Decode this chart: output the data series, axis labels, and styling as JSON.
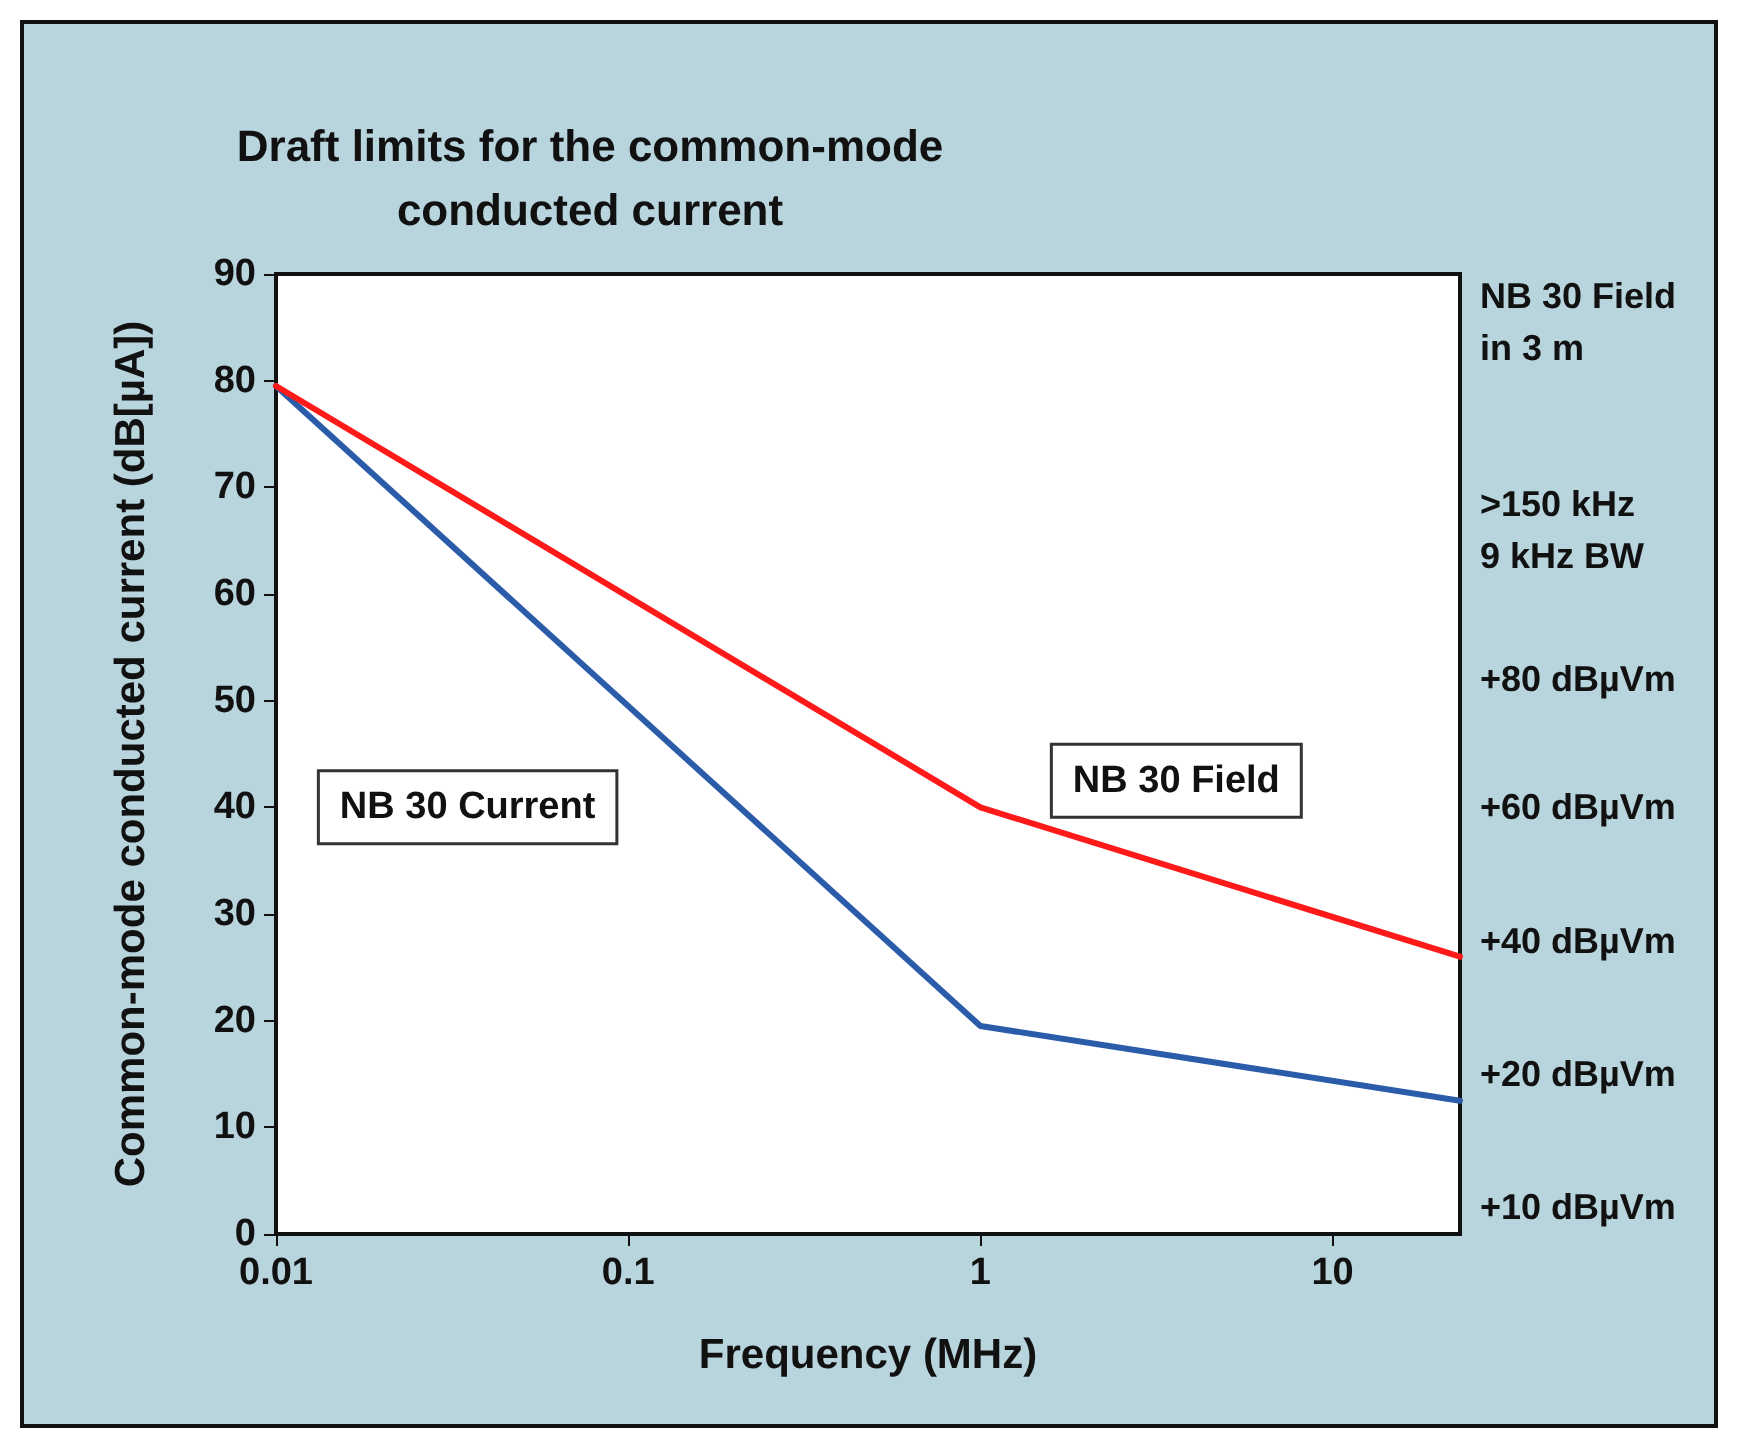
{
  "chart_data": {
    "type": "line",
    "title": "Draft limits for the common-mode\nconducted current",
    "xlabel": "Frequency (MHz)",
    "ylabel": "Common-mode conducted current (dB[µA])",
    "log": "x",
    "xlim": [
      0.01,
      23
    ],
    "xticks": [
      0.01,
      0.1,
      1,
      10
    ],
    "ylim": [
      0,
      90
    ],
    "yticks": [
      0,
      10,
      20,
      30,
      40,
      50,
      60,
      70,
      80,
      90
    ],
    "grid": false,
    "legend": false,
    "marker": "none",
    "line_style": "solid",
    "series": [
      {
        "name": "NB 30 Current",
        "color": "#2a5caa",
        "x": [
          0.01,
          1,
          23
        ],
        "values": [
          79.5,
          19.5,
          12.5
        ]
      },
      {
        "name": "NB 30 Field",
        "color": "#ff1a1a",
        "x": [
          0.01,
          1,
          23
        ],
        "values": [
          79.5,
          40,
          26
        ]
      }
    ],
    "annotations": [
      "NB 30 Field\nin 3 m",
      ">150 kHz\n9 kHz BW",
      "+80 dBµVm",
      "+60 dBµVm",
      "+40 dBµVm",
      "+20 dBµVm",
      "+10 dBµVm"
    ]
  }
}
